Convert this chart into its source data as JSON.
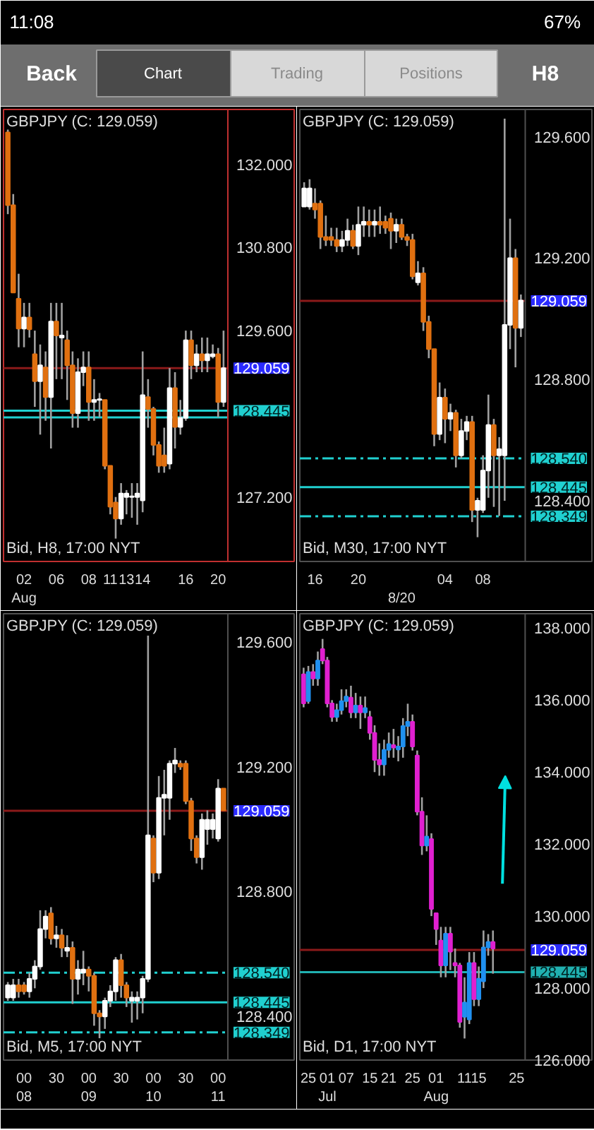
{
  "chart_data": [
    {
      "type": "other",
      "annotations": [
        "11:08",
        "67%",
        "Back",
        "Chart",
        "Trading",
        "Positions",
        "H8"
      ]
    },
    {
      "type": "candlestick",
      "title": "GBPJPY (C: 129.059)",
      "annotations": [
        "Bid, H8, 17:00 NYT"
      ],
      "categories": [
        null,
        null,
        null,
        "02\nAug",
        null,
        null,
        null,
        null,
        null,
        "06",
        null,
        null,
        null,
        null,
        null,
        "08",
        null,
        null,
        null,
        "11",
        null,
        null,
        "13",
        null,
        null,
        "14",
        null,
        null,
        null,
        null,
        null,
        null,
        null,
        "16",
        null,
        null,
        null,
        null,
        null,
        "20",
        null
      ],
      "ohlc": [
        [
          132.46,
          132.5,
          131.28,
          131.41
        ],
        [
          131.41,
          131.57,
          130.15,
          130.15
        ],
        [
          130.06,
          130.42,
          129.36,
          129.63
        ],
        [
          129.63,
          130.0,
          129.36,
          129.79
        ],
        [
          129.79,
          130.0,
          129.5,
          129.62
        ],
        [
          129.26,
          129.6,
          128.5,
          128.87
        ],
        [
          128.87,
          129.4,
          128.1,
          129.1
        ],
        [
          129.07,
          129.3,
          128.3,
          128.64
        ],
        [
          128.64,
          130.0,
          127.9,
          129.73
        ],
        [
          129.73,
          130.0,
          128.9,
          129.53
        ],
        [
          129.5,
          130.0,
          128.9,
          129.53
        ],
        [
          129.46,
          129.6,
          128.6,
          129.1
        ],
        [
          129.1,
          129.3,
          128.2,
          128.41
        ],
        [
          128.41,
          129.2,
          128.2,
          129.0
        ],
        [
          129.0,
          129.3,
          128.8,
          129.07
        ],
        [
          129.07,
          129.3,
          128.3,
          128.57
        ],
        [
          128.57,
          128.9,
          128.3,
          128.6
        ],
        [
          128.6,
          128.7,
          128.35,
          128.61
        ],
        [
          128.6,
          128.6,
          127.6,
          127.65
        ],
        [
          127.65,
          127.65,
          126.95,
          127.06
        ],
        [
          127.12,
          127.2,
          126.6,
          126.89
        ],
        [
          126.89,
          127.4,
          126.8,
          127.25
        ],
        [
          127.2,
          127.3,
          126.95,
          127.25
        ],
        [
          127.2,
          127.4,
          126.9,
          127.21
        ],
        [
          127.2,
          127.4,
          126.8,
          127.25
        ],
        [
          127.15,
          129.3,
          126.98,
          128.67
        ],
        [
          128.64,
          128.9,
          128.2,
          128.47
        ],
        [
          128.47,
          128.5,
          127.8,
          127.95
        ],
        [
          127.95,
          128.0,
          127.55,
          127.65
        ],
        [
          127.8,
          128.2,
          127.55,
          127.65
        ],
        [
          127.68,
          129.06,
          127.6,
          128.77
        ],
        [
          128.77,
          129.0,
          127.9,
          128.21
        ],
        [
          128.21,
          128.6,
          128.1,
          128.34
        ],
        [
          128.34,
          129.6,
          128.3,
          129.46
        ],
        [
          129.46,
          129.6,
          128.9,
          129.1
        ],
        [
          129.1,
          129.4,
          129.0,
          129.26
        ],
        [
          129.26,
          129.5,
          129.0,
          129.17
        ],
        [
          129.17,
          129.5,
          129.0,
          129.26
        ],
        [
          129.23,
          129.4,
          129.2,
          129.26
        ],
        [
          129.26,
          129.35,
          128.35,
          128.57
        ],
        [
          128.57,
          129.6,
          128.5,
          129.06
        ]
      ],
      "colors": [
        "#e07010",
        "#e07010",
        "#e07010",
        "#ffffff",
        "#e07010",
        "#e07010",
        "#ffffff",
        "#e07010",
        "#ffffff",
        "#e07010",
        "#ffffff",
        "#e07010",
        "#e07010",
        "#ffffff",
        "#ffffff",
        "#e07010",
        "#ffffff",
        "#ffffff",
        "#e07010",
        "#e07010",
        "#e07010",
        "#ffffff",
        "#ffffff",
        "#ffffff",
        "#ffffff",
        "#ffffff",
        "#e07010",
        "#e07010",
        "#e07010",
        "#e07010",
        "#ffffff",
        "#e07010",
        "#ffffff",
        "#ffffff",
        "#e07010",
        "#ffffff",
        "#e07010",
        "#ffffff",
        "#ffffff",
        "#e07010",
        "#ffffff"
      ],
      "ylim": [
        126.27,
        132.79
      ],
      "yticks": [
        {
          "value": 132,
          "label": "132.000"
        },
        {
          "value": 130.8,
          "label": "130.800"
        },
        {
          "value": 129.6,
          "label": "129.600"
        },
        {
          "value": 127.2,
          "label": "127.200"
        }
      ],
      "ref_lines": [
        {
          "axis": "y",
          "value": 129.059,
          "label": "129.059",
          "color": "#8b1a1a"
        },
        {
          "axis": "y",
          "value": 128.445,
          "label": "128.445",
          "color": "#20d0d0"
        },
        {
          "axis": "y",
          "value": 128.349,
          "label": null,
          "color": "#20d0d0"
        }
      ]
    },
    {
      "type": "candlestick",
      "title": "GBPJPY (C: 129.059)",
      "annotations": [
        "Bid, M30, 17:00 NYT"
      ],
      "categories": [
        null,
        null,
        "16",
        null,
        null,
        null,
        null,
        null,
        null,
        null,
        "20",
        null,
        null,
        null,
        null,
        null,
        null,
        null,
        "\n8/20",
        null,
        null,
        null,
        null,
        null,
        null,
        null,
        "04",
        null,
        null,
        null,
        null,
        null,
        null,
        "08",
        null,
        null,
        null,
        null,
        null,
        null,
        null
      ],
      "ohlc": [
        [
          129.37,
          129.45,
          129.37,
          129.43
        ],
        [
          129.37,
          129.46,
          129.36,
          129.43
        ],
        [
          129.38,
          129.43,
          129.33,
          129.36
        ],
        [
          129.38,
          129.39,
          129.23,
          129.27
        ],
        [
          129.27,
          129.34,
          129.24,
          129.26
        ],
        [
          129.27,
          129.3,
          129.24,
          129.26
        ],
        [
          129.26,
          129.3,
          129.22,
          129.24
        ],
        [
          129.24,
          129.29,
          129.22,
          129.26
        ],
        [
          129.26,
          129.33,
          129.24,
          129.29
        ],
        [
          129.29,
          129.31,
          129.23,
          129.24
        ],
        [
          129.24,
          129.37,
          129.21,
          129.31
        ],
        [
          129.31,
          129.37,
          129.27,
          129.32
        ],
        [
          129.32,
          129.36,
          129.27,
          129.31
        ],
        [
          129.31,
          129.36,
          129.27,
          129.32
        ],
        [
          129.32,
          129.37,
          129.28,
          129.31
        ],
        [
          129.32,
          129.34,
          129.28,
          129.3
        ],
        [
          129.33,
          129.35,
          129.23,
          129.29
        ],
        [
          129.29,
          129.33,
          129.25,
          129.31
        ],
        [
          129.31,
          129.33,
          129.26,
          129.27
        ],
        [
          129.27,
          129.28,
          129.24,
          129.26
        ],
        [
          129.26,
          129.28,
          129.13,
          129.14
        ],
        [
          129.12,
          129.19,
          129.11,
          129.15
        ],
        [
          129.15,
          129.17,
          128.96,
          128.99
        ],
        [
          128.99,
          129.01,
          128.87,
          128.9
        ],
        [
          128.9,
          128.9,
          128.58,
          128.62
        ],
        [
          128.62,
          128.79,
          128.6,
          128.74
        ],
        [
          128.74,
          128.77,
          128.59,
          128.67
        ],
        [
          128.67,
          128.72,
          128.63,
          128.69
        ],
        [
          128.69,
          128.7,
          128.51,
          128.55
        ],
        [
          128.55,
          128.67,
          128.54,
          128.63
        ],
        [
          128.63,
          128.68,
          128.6,
          128.66
        ],
        [
          128.66,
          128.68,
          128.33,
          128.37
        ],
        [
          128.37,
          128.41,
          128.28,
          128.4
        ],
        [
          128.37,
          128.55,
          128.36,
          128.5
        ],
        [
          128.5,
          128.75,
          128.41,
          128.65
        ],
        [
          128.65,
          128.67,
          128.38,
          128.55
        ],
        [
          128.55,
          128.61,
          128.35,
          128.57
        ],
        [
          128.55,
          129.66,
          128.4,
          128.98
        ],
        [
          128.98,
          129.33,
          128.9,
          129.2
        ],
        [
          129.2,
          129.23,
          128.84,
          128.97
        ],
        [
          128.97,
          129.08,
          128.94,
          129.06
        ]
      ],
      "colors": [
        "#ffffff",
        "#ffffff",
        "#e07010",
        "#e07010",
        "#e07010",
        "#e07010",
        "#e07010",
        "#ffffff",
        "#ffffff",
        "#e07010",
        "#ffffff",
        "#ffffff",
        "#e07010",
        "#ffffff",
        "#e07010",
        "#e07010",
        "#e07010",
        "#ffffff",
        "#e07010",
        "#e07010",
        "#e07010",
        "#ffffff",
        "#e07010",
        "#e07010",
        "#e07010",
        "#ffffff",
        "#e07010",
        "#ffffff",
        "#e07010",
        "#ffffff",
        "#ffffff",
        "#e07010",
        "#ffffff",
        "#ffffff",
        "#ffffff",
        "#e07010",
        "#ffffff",
        "#ffffff",
        "#ffffff",
        "#e07010",
        "#ffffff"
      ],
      "ylim": [
        128.2,
        129.69
      ],
      "yticks": [
        {
          "value": 129.6,
          "label": "129.600"
        },
        {
          "value": 129.2,
          "label": "129.200"
        },
        {
          "value": 128.8,
          "label": "128.800"
        },
        {
          "value": 128.4,
          "label": "128.400"
        }
      ],
      "ref_lines": [
        {
          "axis": "y",
          "value": 129.059,
          "label": "129.059",
          "color": "#8b1a1a"
        },
        {
          "axis": "y",
          "value": 128.54,
          "label": "128.540",
          "color": "#20d0d0",
          "line_style": "dashed"
        },
        {
          "axis": "y",
          "value": 128.445,
          "label": "128.445",
          "color": "#20d0d0"
        },
        {
          "axis": "y",
          "value": 128.349,
          "label": "128.349",
          "color": "#20d0d0",
          "line_style": "dashed"
        }
      ]
    },
    {
      "type": "candlestick",
      "title": "GBPJPY (C: 129.059)",
      "annotations": [
        "Bid, M5, 17:00 NYT"
      ],
      "categories": [
        null,
        null,
        null,
        "00\n08",
        null,
        null,
        null,
        null,
        null,
        "30",
        null,
        null,
        null,
        null,
        null,
        "00\n09",
        null,
        null,
        null,
        null,
        null,
        "30",
        null,
        null,
        null,
        null,
        null,
        "00\n10",
        null,
        null,
        null,
        null,
        null,
        "30",
        null,
        null,
        null,
        null,
        null,
        "00\n11",
        null
      ],
      "ohlc": [
        [
          128.46,
          128.51,
          128.45,
          128.5
        ],
        [
          128.46,
          128.52,
          128.45,
          128.5
        ],
        [
          128.5,
          128.52,
          128.46,
          128.48
        ],
        [
          128.5,
          128.51,
          128.47,
          128.48
        ],
        [
          128.48,
          128.54,
          128.46,
          128.52
        ],
        [
          128.52,
          128.58,
          128.49,
          128.56
        ],
        [
          128.56,
          128.74,
          128.55,
          128.68
        ],
        [
          128.68,
          128.74,
          128.65,
          128.72
        ],
        [
          128.73,
          128.75,
          128.63,
          128.65
        ],
        [
          128.65,
          128.69,
          128.62,
          128.66
        ],
        [
          128.66,
          128.68,
          128.59,
          128.62
        ],
        [
          128.61,
          128.66,
          128.59,
          128.62
        ],
        [
          128.62,
          128.64,
          128.44,
          128.52
        ],
        [
          128.52,
          128.58,
          128.47,
          128.55
        ],
        [
          128.54,
          128.61,
          128.5,
          128.55
        ],
        [
          128.55,
          128.56,
          128.48,
          128.53
        ],
        [
          128.53,
          128.54,
          128.37,
          128.41
        ],
        [
          128.41,
          128.42,
          128.33,
          128.4
        ],
        [
          128.4,
          128.46,
          128.36,
          128.45
        ],
        [
          128.45,
          128.5,
          128.43,
          128.48
        ],
        [
          128.48,
          128.59,
          128.45,
          128.58
        ],
        [
          128.58,
          128.6,
          128.46,
          128.5
        ],
        [
          128.5,
          128.51,
          128.43,
          128.46
        ],
        [
          128.45,
          128.48,
          128.38,
          128.46
        ],
        [
          128.45,
          128.48,
          128.39,
          128.46
        ],
        [
          128.46,
          128.53,
          128.41,
          128.52
        ],
        [
          128.52,
          129.62,
          128.51,
          128.98
        ],
        [
          128.97,
          128.98,
          128.83,
          128.86
        ],
        [
          128.86,
          129.17,
          128.84,
          129.1
        ],
        [
          129.1,
          129.19,
          128.98,
          129.11
        ],
        [
          129.1,
          129.22,
          129.03,
          129.21
        ],
        [
          129.21,
          129.26,
          129.18,
          129.22
        ],
        [
          129.21,
          129.22,
          129.19,
          129.2
        ],
        [
          129.21,
          129.22,
          129.08,
          129.09
        ],
        [
          129.09,
          129.1,
          128.93,
          128.97
        ],
        [
          128.97,
          128.98,
          128.89,
          128.91
        ],
        [
          128.91,
          129.05,
          128.87,
          129.03
        ],
        [
          129.0,
          129.06,
          128.95,
          129.03
        ],
        [
          129.0,
          129.05,
          128.97,
          129.03
        ],
        [
          128.97,
          129.16,
          128.96,
          129.13
        ],
        [
          129.13,
          129.13,
          129.06,
          129.06
        ]
      ],
      "colors": [
        "#ffffff",
        "#ffffff",
        "#e07010",
        "#e07010",
        "#ffffff",
        "#ffffff",
        "#ffffff",
        "#ffffff",
        "#e07010",
        "#ffffff",
        "#e07010",
        "#ffffff",
        "#e07010",
        "#ffffff",
        "#ffffff",
        "#e07010",
        "#e07010",
        "#e07010",
        "#ffffff",
        "#ffffff",
        "#ffffff",
        "#e07010",
        "#e07010",
        "#ffffff",
        "#ffffff",
        "#ffffff",
        "#ffffff",
        "#e07010",
        "#ffffff",
        "#ffffff",
        "#ffffff",
        "#ffffff",
        "#e07010",
        "#e07010",
        "#e07010",
        "#e07010",
        "#ffffff",
        "#ffffff",
        "#ffffff",
        "#ffffff",
        "#e07010"
      ],
      "ylim": [
        128.26,
        129.69
      ],
      "yticks": [
        {
          "value": 129.6,
          "label": "129.600"
        },
        {
          "value": 129.2,
          "label": "129.200"
        },
        {
          "value": 128.8,
          "label": "128.800"
        },
        {
          "value": 128.4,
          "label": "128.400"
        }
      ],
      "ref_lines": [
        {
          "axis": "y",
          "value": 129.059,
          "label": "129.059",
          "color": "#8b1a1a"
        },
        {
          "axis": "y",
          "value": 128.54,
          "label": "128.540",
          "color": "#20d0d0",
          "line_style": "dashed"
        },
        {
          "axis": "y",
          "value": 128.445,
          "label": "128.445",
          "color": "#20d0d0"
        },
        {
          "axis": "y",
          "value": 128.349,
          "label": "128.349",
          "color": "#20d0d0",
          "line_style": "dashed"
        }
      ]
    },
    {
      "type": "candlestick",
      "title": "GBPJPY (C: 129.059)",
      "annotations": [
        "Bid, D1, 17:00 NYT"
      ],
      "categories": [
        null,
        "25",
        null,
        null,
        null,
        "01\nJul",
        null,
        null,
        null,
        "07",
        null,
        null,
        null,
        null,
        "15",
        null,
        null,
        null,
        "21",
        null,
        null,
        null,
        null,
        "25",
        null,
        null,
        null,
        null,
        "01\nAug",
        null,
        null,
        null,
        null,
        null,
        "11",
        null,
        null,
        "15",
        null,
        null,
        null,
        null,
        null,
        null,
        null,
        "25",
        null
      ],
      "ohlc": [
        [
          136.72,
          136.9,
          135.8,
          135.91
        ],
        [
          135.97,
          136.95,
          135.9,
          136.78
        ],
        [
          136.78,
          137.0,
          136.4,
          136.6
        ],
        [
          136.6,
          137.35,
          136.4,
          137.1
        ],
        [
          137.42,
          137.7,
          137.0,
          137.1
        ],
        [
          137.1,
          137.2,
          135.8,
          135.91
        ],
        [
          135.91,
          136.0,
          135.4,
          135.53
        ],
        [
          135.53,
          135.9,
          135.4,
          135.72
        ],
        [
          135.72,
          136.3,
          135.6,
          135.97
        ],
        [
          135.97,
          136.3,
          135.8,
          136.1
        ],
        [
          136.07,
          136.4,
          135.5,
          135.66
        ],
        [
          135.66,
          136.2,
          135.5,
          135.85
        ],
        [
          135.85,
          136.1,
          135.2,
          135.66
        ],
        [
          135.66,
          136.1,
          135.5,
          135.78
        ],
        [
          135.53,
          135.7,
          134.9,
          135.09
        ],
        [
          135.09,
          135.3,
          134.0,
          134.34
        ],
        [
          134.34,
          134.8,
          133.9,
          134.21
        ],
        [
          134.21,
          134.9,
          133.9,
          134.62
        ],
        [
          134.62,
          135.1,
          134.4,
          134.78
        ],
        [
          134.75,
          135.2,
          134.4,
          134.68
        ],
        [
          134.63,
          135.0,
          134.3,
          134.71
        ],
        [
          134.71,
          135.5,
          134.4,
          135.28
        ],
        [
          135.28,
          135.9,
          135.0,
          135.4
        ],
        [
          135.4,
          135.6,
          134.6,
          134.71
        ],
        [
          134.46,
          134.6,
          132.8,
          132.9
        ],
        [
          132.9,
          133.3,
          131.7,
          131.96
        ],
        [
          131.96,
          132.8,
          131.8,
          132.21
        ],
        [
          132.14,
          132.3,
          130.0,
          130.2
        ],
        [
          130.08,
          130.1,
          129.2,
          129.64
        ],
        [
          129.32,
          129.7,
          128.3,
          128.63
        ],
        [
          128.63,
          129.7,
          128.3,
          129.51
        ],
        [
          129.51,
          129.7,
          128.5,
          129.01
        ],
        [
          128.7,
          129.1,
          128.3,
          128.63
        ],
        [
          128.63,
          128.7,
          126.9,
          127.06
        ],
        [
          127.2,
          128.3,
          126.6,
          127.6
        ],
        [
          127.13,
          129.0,
          127.0,
          128.7
        ],
        [
          128.7,
          129.0,
          127.5,
          127.69
        ],
        [
          127.69,
          128.6,
          127.5,
          128.26
        ],
        [
          128.19,
          129.6,
          128.0,
          129.13
        ],
        [
          129.13,
          129.5,
          128.9,
          129.28
        ],
        [
          129.28,
          129.6,
          128.4,
          129.1
        ],
        null,
        null,
        null,
        null,
        null,
        null
      ],
      "colors": [
        "#e020d0",
        "#2090f0",
        "#e020d0",
        "#2090f0",
        "#e020d0",
        "#e020d0",
        "#e020d0",
        "#2090f0",
        "#2090f0",
        "#2090f0",
        "#e020d0",
        "#2090f0",
        "#e020d0",
        "#2090f0",
        "#e020d0",
        "#e020d0",
        "#e020d0",
        "#2090f0",
        "#2090f0",
        "#e020d0",
        "#2090f0",
        "#2090f0",
        "#2090f0",
        "#e020d0",
        "#e020d0",
        "#e020d0",
        "#2090f0",
        "#e020d0",
        "#e020d0",
        "#e020d0",
        "#2090f0",
        "#e020d0",
        "#e020d0",
        "#e020d0",
        "#2090f0",
        "#2090f0",
        "#e020d0",
        "#2090f0",
        "#2090f0",
        "#2090f0",
        "#e020d0",
        null,
        null,
        null,
        null,
        null,
        null
      ],
      "ylim": [
        126.0,
        138.4
      ],
      "yticks": [
        {
          "value": 138,
          "label": "138.000"
        },
        {
          "value": 136,
          "label": "136.000"
        },
        {
          "value": 134,
          "label": "134.000"
        },
        {
          "value": 132,
          "label": "132.000"
        },
        {
          "value": 130,
          "label": "130.000"
        },
        {
          "value": 128,
          "label": "128.000"
        },
        {
          "value": 126,
          "label": "126.000"
        }
      ],
      "ref_lines": [
        {
          "axis": "y",
          "value": 129.059,
          "label": "129.059",
          "color": "#8b1a1a"
        },
        {
          "axis": "y",
          "value": 128.445,
          "label": "128.445",
          "color": "#20b0b0"
        }
      ]
    }
  ]
}
